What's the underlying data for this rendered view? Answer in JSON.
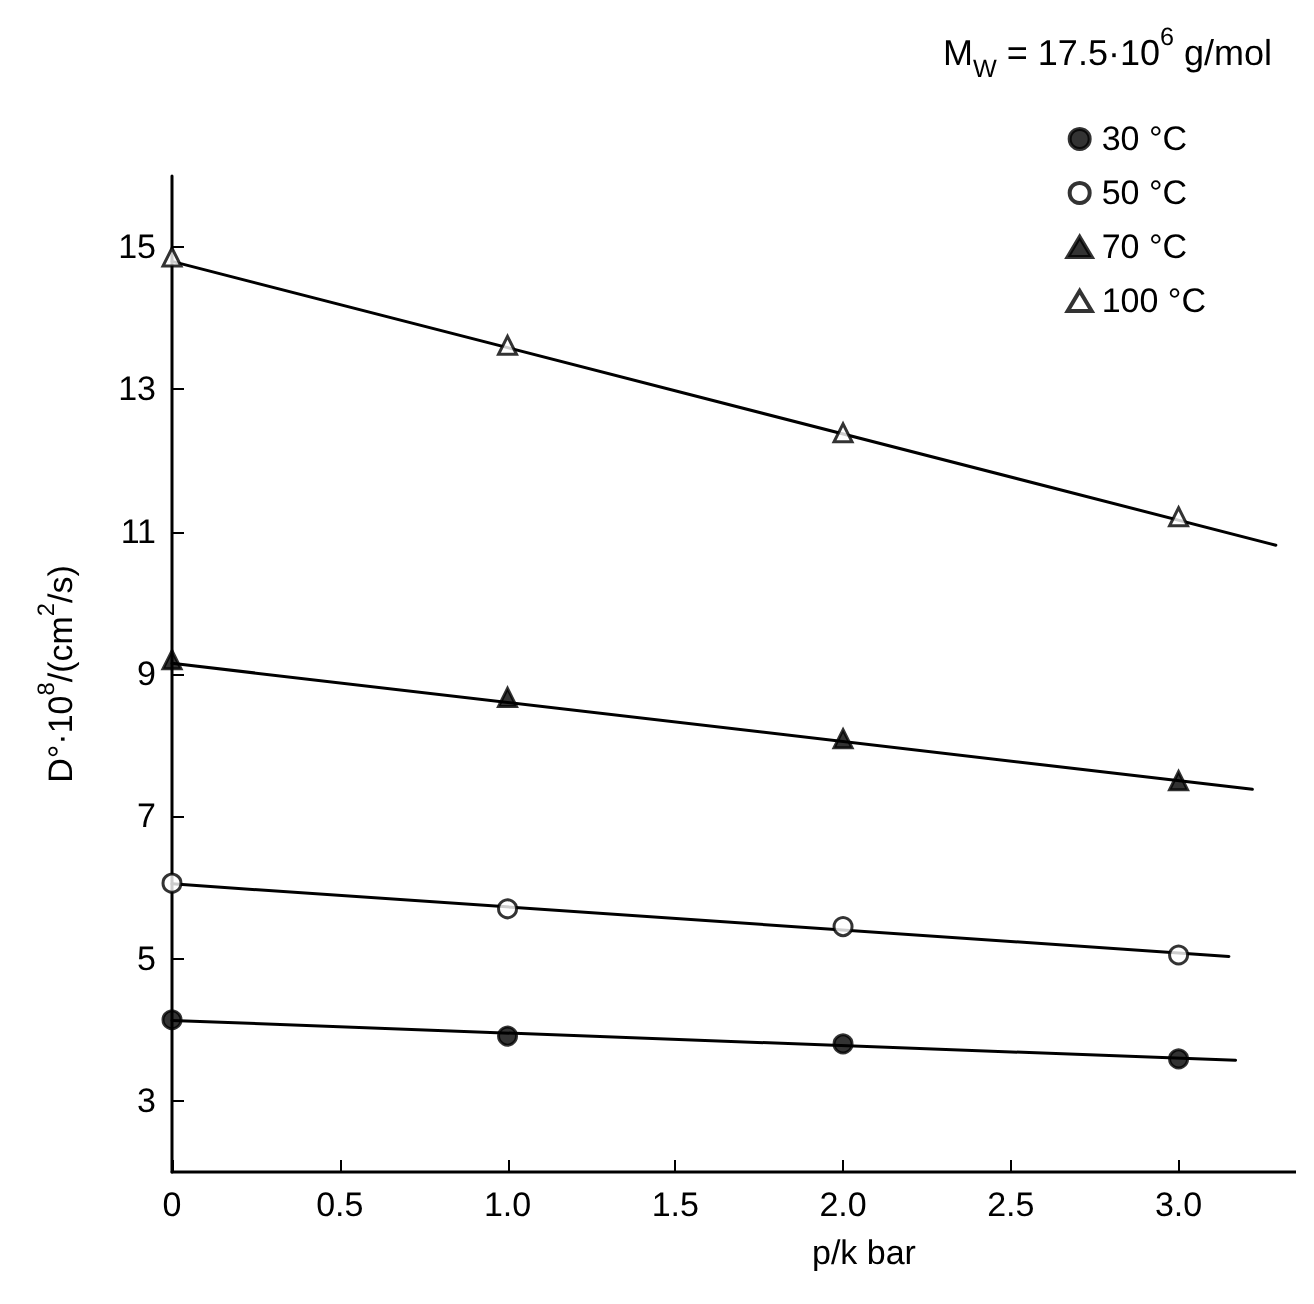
{
  "chart_data": {
    "type": "scatter",
    "xlabel": "p/k bar",
    "ylabel": "D°·10$^{8}$/(cm$^{2}$/s)",
    "annotations": [
      "M$_{W}$ = 17.5·10$^{6}$ g/mol"
    ],
    "xlim": [
      0,
      3.35
    ],
    "xticks": [
      {
        "value": 0,
        "label": "0"
      },
      0.5,
      {
        "value": 1,
        "label": "1.0"
      },
      1.5,
      {
        "value": 2,
        "label": "2.0"
      },
      2.5,
      {
        "value": 3,
        "label": "3.0"
      }
    ],
    "ylim": [
      2,
      16
    ],
    "yticks": [
      3,
      5,
      7,
      9,
      11,
      13,
      15
    ],
    "grid": false,
    "legend": "top right",
    "series": [
      {
        "name": "30 °C",
        "color": "#000000",
        "marker": "circle",
        "x": [
          0,
          1,
          2,
          3
        ],
        "values": [
          4.14,
          3.91,
          3.8,
          3.59
        ]
      },
      {
        "name": "50 °C",
        "color": "#ffffff",
        "marker": "circle",
        "x": [
          0,
          1,
          2,
          3
        ],
        "values": [
          6.06,
          5.7,
          5.45,
          5.05
        ]
      },
      {
        "name": "70 °C",
        "color": "#000000",
        "marker": "triangle",
        "x": [
          0,
          1,
          2,
          3
        ],
        "values": [
          9.2,
          8.67,
          8.09,
          7.5
        ]
      },
      {
        "name": "100 °C",
        "color": "#ffffff",
        "marker": "triangle",
        "x": [
          0,
          1,
          2,
          3
        ],
        "values": [
          14.86,
          13.62,
          12.39,
          11.21
        ]
      },
      {
        "type": "line",
        "color": "#000000",
        "marker": "none",
        "line_style": "solid",
        "x": [
          0,
          3.17
        ],
        "values": [
          4.13,
          3.57
        ]
      },
      {
        "type": "line",
        "color": "#000000",
        "marker": "none",
        "line_style": "solid",
        "x": [
          0,
          3.15
        ],
        "values": [
          6.05,
          5.03
        ]
      },
      {
        "type": "line",
        "color": "#000000",
        "marker": "none",
        "line_style": "solid",
        "x": [
          0,
          3.22
        ],
        "values": [
          9.15,
          7.38
        ]
      },
      {
        "type": "line",
        "color": "#000000",
        "marker": "none",
        "line_style": "solid",
        "x": [
          0,
          3.29
        ],
        "values": [
          14.8,
          10.81
        ]
      }
    ]
  }
}
